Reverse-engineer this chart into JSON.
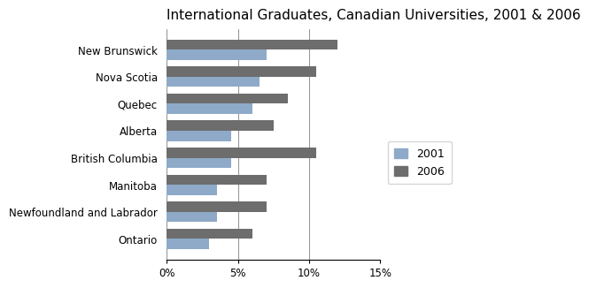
{
  "title": "International Graduates, Canadian Universities, 2001 & 2006",
  "provinces": [
    "New Brunswick",
    "Nova Scotia",
    "Quebec",
    "Alberta",
    "British Columbia",
    "Manitoba",
    "Newfoundland and Labrador",
    "Ontario"
  ],
  "values_2001": [
    7.0,
    6.5,
    6.0,
    4.5,
    4.5,
    3.5,
    3.5,
    3.0
  ],
  "values_2006": [
    12.0,
    10.5,
    8.5,
    7.5,
    10.5,
    7.0,
    7.0,
    6.0
  ],
  "color_2001": "#8EAAC8",
  "color_2006": "#6D6D6D",
  "xlim": [
    0,
    15
  ],
  "xticks": [
    0,
    5,
    10,
    15
  ],
  "xtick_labels": [
    "0%",
    "5%",
    "10%",
    "15%"
  ],
  "bar_height": 0.38,
  "legend_labels": [
    "2001",
    "2006"
  ],
  "background_color": "#ffffff",
  "title_fontsize": 11,
  "tick_fontsize": 8.5,
  "legend_fontsize": 9
}
